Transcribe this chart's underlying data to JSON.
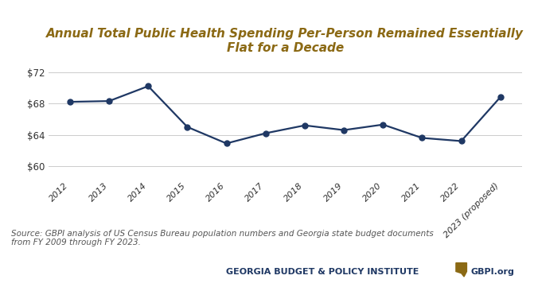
{
  "title": "Annual Total Public Health Spending Per-Person Remained Essentially\nFlat for a Decade",
  "title_color": "#8B6914",
  "title_fontsize": 11,
  "years": [
    "2012",
    "2013",
    "2014",
    "2015",
    "2016",
    "2017",
    "2018",
    "2019",
    "2020",
    "2021",
    "2022",
    "2023 (proposed)"
  ],
  "values": [
    68.2,
    68.3,
    70.2,
    65.0,
    62.9,
    64.2,
    65.2,
    64.6,
    65.3,
    63.6,
    63.2,
    68.8
  ],
  "line_color": "#1F3864",
  "marker_color": "#1F3864",
  "marker_size": 5,
  "ylim": [
    58.5,
    73.5
  ],
  "yticks": [
    60,
    64,
    68,
    72
  ],
  "ytick_labels": [
    "$60",
    "$64",
    "$68",
    "$72"
  ],
  "background_color": "#ffffff",
  "grid_color": "#cccccc",
  "source_text": "Source: GBPI analysis of US Census Bureau population numbers and Georgia state budget documents\nfrom FY 2009 through FY 2023.",
  "source_fontsize": 7.5,
  "source_color": "#555555",
  "footer_institute": "GEORGIA BUDGET & POLICY INSTITUTE",
  "footer_url": "GBPI.org",
  "footer_color": "#1F3864",
  "footer_icon_color": "#8B6914"
}
